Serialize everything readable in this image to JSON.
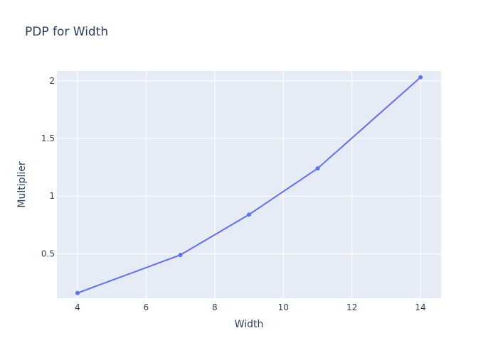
{
  "chart_data": {
    "type": "line",
    "title": "PDP for Width",
    "xlabel": "Width",
    "ylabel": "Multiplier",
    "xlim": [
      3.4,
      14.6
    ],
    "ylim": [
      0.115,
      2.085
    ],
    "x_ticks": [
      4,
      6,
      8,
      10,
      12,
      14
    ],
    "x_tick_labels": [
      "4",
      "6",
      "8",
      "10",
      "12",
      "14"
    ],
    "y_ticks": [
      0.5,
      1,
      1.5,
      2
    ],
    "y_tick_labels": [
      "0.5",
      "1",
      "1.5",
      "2"
    ],
    "grid": true,
    "series": [
      {
        "x": [
          4,
          7,
          9,
          11,
          14
        ],
        "values": [
          0.16,
          0.49,
          0.84,
          1.24,
          2.03
        ],
        "color": "#636efa",
        "mode": "lines+markers"
      }
    ],
    "colors": {
      "plot_background": "#e5ecf6",
      "grid": "#ffffff",
      "text": "#2a3f5f"
    }
  }
}
